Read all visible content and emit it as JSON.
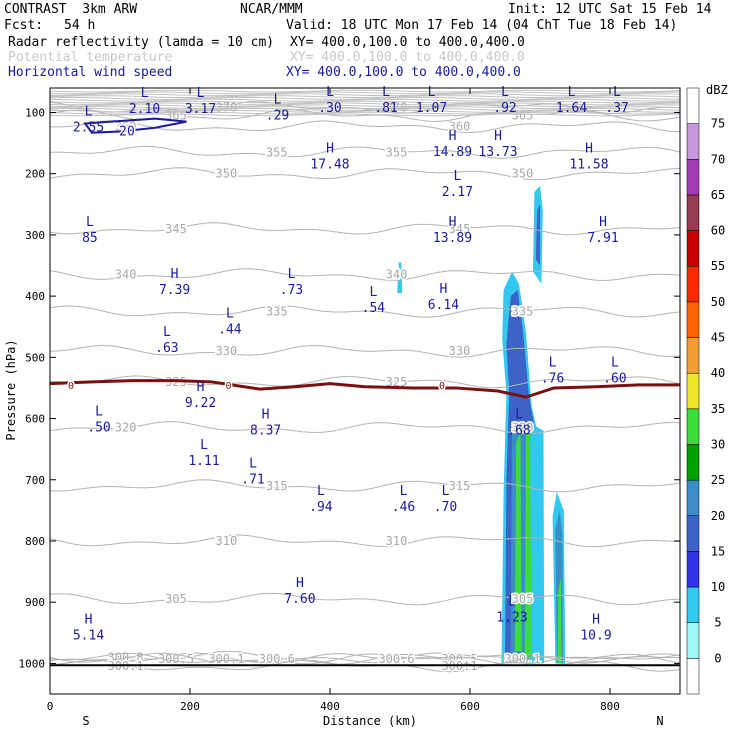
{
  "header": {
    "model": "CONTRAST  3km ARW",
    "org": "NCAR/MMM",
    "init": "Init: 12 UTC Sat 15 Feb 14",
    "fcst_label": "Fcst:",
    "fcst_value": "54 h",
    "valid": "Valid: 18 UTC Mon 17 Feb 14 (04 ChT Tue 18 Feb 14)",
    "fields": [
      {
        "name": "Radar reflectivity (lamda = 10 cm)",
        "xy": "XY= 400.0,100.0 to 400.0,400.0",
        "color": "#000000"
      },
      {
        "name": "Potential temperature",
        "xy": "XY= 400.0,100.0 to 400.0,400.0",
        "color": "#c8c8c8"
      },
      {
        "name": "Horizontal wind speed",
        "xy": "XY= 400.0,100.0 to 400.0,400.0",
        "color": "#1a1aa0"
      }
    ]
  },
  "chart_data": {
    "type": "heatmap",
    "xlabel": "Distance (km)",
    "ylabel": "Pressure (hPa)",
    "xlim": [
      0,
      900
    ],
    "ylim": [
      1050,
      60
    ],
    "x_ticks": [
      0,
      200,
      400,
      600,
      800
    ],
    "y_ticks": [
      100,
      200,
      300,
      400,
      500,
      600,
      700,
      800,
      900,
      1000
    ],
    "x_end_labels": {
      "left": "S",
      "right": "N"
    },
    "colorbar": {
      "unit": "dBZ",
      "levels": [
        0,
        5,
        10,
        15,
        20,
        25,
        30,
        35,
        40,
        45,
        50,
        55,
        60,
        65,
        70,
        75
      ],
      "colors": [
        "#ffffff",
        "#9ff7f7",
        "#32c8f0",
        "#3232e6",
        "#3c64c8",
        "#3c8cc8",
        "#00a000",
        "#3cdc3c",
        "#f0e628",
        "#f0a032",
        "#ff6400",
        "#ff2800",
        "#c80000",
        "#963c50",
        "#a03cb4",
        "#c896dc",
        "#ffffff"
      ]
    },
    "reflectivity_regions": [
      {
        "dbz": 5,
        "poly": [
          [
            645,
            1000
          ],
          [
            648,
            720
          ],
          [
            652,
            560
          ],
          [
            646,
            470
          ],
          [
            648,
            390
          ],
          [
            660,
            360
          ],
          [
            670,
            380
          ],
          [
            680,
            460
          ],
          [
            688,
            580
          ],
          [
            700,
            640
          ],
          [
            702,
            1000
          ]
        ]
      },
      {
        "dbz": 15,
        "poly": [
          [
            650,
            1000
          ],
          [
            652,
            700
          ],
          [
            656,
            560
          ],
          [
            652,
            480
          ],
          [
            658,
            400
          ],
          [
            668,
            390
          ],
          [
            676,
            460
          ],
          [
            684,
            560
          ],
          [
            696,
            640
          ],
          [
            698,
            1000
          ]
        ]
      },
      {
        "dbz": 20,
        "poly": [
          [
            658,
            1000
          ],
          [
            660,
            620
          ],
          [
            670,
            600
          ],
          [
            680,
            620
          ],
          [
            690,
            640
          ],
          [
            694,
            1000
          ]
        ]
      },
      {
        "dbz": 30,
        "poly": [
          [
            664,
            980
          ],
          [
            666,
            640
          ],
          [
            672,
            620
          ],
          [
            674,
            980
          ]
        ]
      },
      {
        "dbz": 30,
        "poly": [
          [
            678,
            990
          ],
          [
            680,
            620
          ],
          [
            686,
            620
          ],
          [
            688,
            990
          ]
        ]
      },
      {
        "dbz": 5,
        "poly": [
          [
            686,
            620
          ],
          [
            690,
            610
          ],
          [
            705,
            620
          ],
          [
            706,
            1000
          ],
          [
            688,
            1000
          ]
        ]
      },
      {
        "dbz": 5,
        "poly": [
          [
            722,
            1000
          ],
          [
            718,
            760
          ],
          [
            724,
            720
          ],
          [
            734,
            750
          ],
          [
            736,
            1000
          ]
        ]
      },
      {
        "dbz": 20,
        "poly": [
          [
            724,
            1000
          ],
          [
            722,
            780
          ],
          [
            728,
            750
          ],
          [
            732,
            790
          ],
          [
            733,
            1000
          ]
        ]
      },
      {
        "dbz": 30,
        "poly": [
          [
            725,
            1000
          ],
          [
            726,
            880
          ],
          [
            730,
            860
          ],
          [
            731,
            1000
          ]
        ]
      },
      {
        "dbz": 5,
        "poly": [
          [
            690,
            360
          ],
          [
            692,
            230
          ],
          [
            700,
            220
          ],
          [
            704,
            260
          ],
          [
            702,
            380
          ]
        ]
      },
      {
        "dbz": 15,
        "poly": [
          [
            694,
            340
          ],
          [
            696,
            260
          ],
          [
            700,
            250
          ],
          [
            700,
            350
          ]
        ]
      },
      {
        "dbz": 5,
        "poly": [
          [
            496,
            395
          ],
          [
            498,
            345
          ],
          [
            502,
            345
          ],
          [
            503,
            395
          ]
        ]
      }
    ],
    "theta_contours": [
      {
        "label": "300.8",
        "p": 990
      },
      {
        "label": "300.5",
        "p": 993
      },
      {
        "label": "300.1",
        "p": 993
      },
      {
        "label": "300.6",
        "p": 993
      },
      {
        "label": "300.1",
        "p": 1004
      },
      {
        "label": "305",
        "p": 895
      },
      {
        "label": "310",
        "p": 800
      },
      {
        "label": "315",
        "p": 710
      },
      {
        "label": "320",
        "p": 615
      },
      {
        "label": "325",
        "p": 540
      },
      {
        "label": "330",
        "p": 490
      },
      {
        "label": "335",
        "p": 425
      },
      {
        "label": "340",
        "p": 365
      },
      {
        "label": "345",
        "p": 290
      },
      {
        "label": "350",
        "p": 200
      },
      {
        "label": "355",
        "p": 165
      },
      {
        "label": "360",
        "p": 123
      },
      {
        "label": "365",
        "p": 105
      },
      {
        "label": "370",
        "p": 92
      }
    ],
    "freezing_level": {
      "label": "0",
      "color": "#7a1010",
      "points": [
        [
          0,
          543
        ],
        [
          60,
          540
        ],
        [
          120,
          538
        ],
        [
          180,
          538
        ],
        [
          230,
          540
        ],
        [
          300,
          552
        ],
        [
          350,
          548
        ],
        [
          400,
          543
        ],
        [
          450,
          548
        ],
        [
          520,
          550
        ],
        [
          580,
          550
        ],
        [
          640,
          555
        ],
        [
          680,
          565
        ],
        [
          720,
          550
        ],
        [
          780,
          548
        ],
        [
          840,
          545
        ],
        [
          900,
          545
        ]
      ]
    },
    "wind_contour_20": {
      "label": "20",
      "points": [
        [
          50,
          118
        ],
        [
          100,
          114
        ],
        [
          150,
          110
        ],
        [
          195,
          115
        ],
        [
          150,
          125
        ],
        [
          100,
          131
        ],
        [
          60,
          133
        ]
      ]
    },
    "wind_extrema": [
      {
        "type": "L",
        "value": "2.10",
        "x": 135,
        "p": 80
      },
      {
        "type": "L",
        "value": "3.17",
        "x": 215,
        "p": 80
      },
      {
        "type": "L",
        "value": ".29",
        "x": 325,
        "p": 90
      },
      {
        "type": "L",
        "value": ".30",
        "x": 400,
        "p": 78
      },
      {
        "type": "L",
        "value": ".81",
        "x": 480,
        "p": 78
      },
      {
        "type": "L",
        "value": "1.07",
        "x": 545,
        "p": 78
      },
      {
        "type": "L",
        "value": ".92",
        "x": 650,
        "p": 78
      },
      {
        "type": "L",
        "value": "1.64",
        "x": 745,
        "p": 78
      },
      {
        "type": "L",
        "value": ".37",
        "x": 810,
        "p": 78
      },
      {
        "type": "L",
        "value": "2.55",
        "x": 55,
        "p": 110
      },
      {
        "type": "H",
        "value": "17.48",
        "x": 400,
        "p": 170
      },
      {
        "type": "H",
        "value": "14.89",
        "x": 575,
        "p": 150
      },
      {
        "type": "H",
        "value": "13.73",
        "x": 640,
        "p": 150
      },
      {
        "type": "H",
        "value": "11.58",
        "x": 770,
        "p": 170
      },
      {
        "type": "L",
        "value": "2.17",
        "x": 582,
        "p": 215
      },
      {
        "type": "L",
        "value": "85",
        "x": 57,
        "p": 290
      },
      {
        "type": "H",
        "value": "13.89",
        "x": 575,
        "p": 290
      },
      {
        "type": "H",
        "value": "7.91",
        "x": 790,
        "p": 290
      },
      {
        "type": "H",
        "value": "7.39",
        "x": 178,
        "p": 375
      },
      {
        "type": "L",
        "value": ".73",
        "x": 345,
        "p": 375
      },
      {
        "type": "L",
        "value": ".54",
        "x": 462,
        "p": 405
      },
      {
        "type": "H",
        "value": "6.14",
        "x": 562,
        "p": 400
      },
      {
        "type": "L",
        "value": ".44",
        "x": 257,
        "p": 440
      },
      {
        "type": "L",
        "value": ".63",
        "x": 167,
        "p": 470
      },
      {
        "type": "L",
        "value": ".76",
        "x": 718,
        "p": 520
      },
      {
        "type": "L",
        "value": ".60",
        "x": 807,
        "p": 520
      },
      {
        "type": "H",
        "value": "9.22",
        "x": 215,
        "p": 560
      },
      {
        "type": "L",
        "value": ".50",
        "x": 70,
        "p": 600
      },
      {
        "type": "H",
        "value": "8.37",
        "x": 308,
        "p": 605
      },
      {
        "type": "L",
        "value": ".68",
        "x": 670,
        "p": 605
      },
      {
        "type": "L",
        "value": "1.11",
        "x": 220,
        "p": 655
      },
      {
        "type": "L",
        "value": ".71",
        "x": 290,
        "p": 685
      },
      {
        "type": "L",
        "value": ".94",
        "x": 387,
        "p": 730
      },
      {
        "type": "L",
        "value": ".46",
        "x": 505,
        "p": 730
      },
      {
        "type": "L",
        "value": ".70",
        "x": 565,
        "p": 730
      },
      {
        "type": "H",
        "value": "7.60",
        "x": 357,
        "p": 880
      },
      {
        "type": "H",
        "value": "5.14",
        "x": 55,
        "p": 940
      },
      {
        "type": "L",
        "value": "1.23",
        "x": 660,
        "p": 910
      },
      {
        "type": "H",
        "value": "10.9",
        "x": 780,
        "p": 940
      }
    ]
  }
}
